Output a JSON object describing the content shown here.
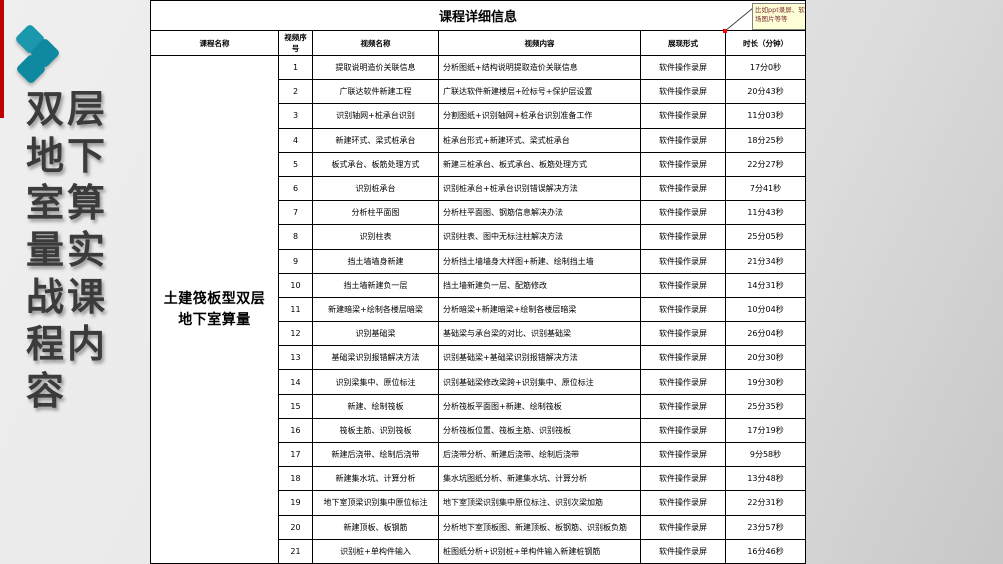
{
  "sidebar": {
    "title": "双层地下室算量实战课程内容"
  },
  "logo": {
    "color": "#1590a7"
  },
  "accent": {
    "red_bar_color": "#c00000"
  },
  "note": {
    "line1": "比如ppt录屏、软件",
    "line2": "场图片等等",
    "bg_color": "#ffffd7",
    "text_color": "#7b3030"
  },
  "table": {
    "title": "课程详细信息",
    "columns": [
      "课程名称",
      "视频序号",
      "视频名称",
      "视频内容",
      "展现形式",
      "时长（分钟）"
    ],
    "course_name": "土建筏板型双层地下室算量",
    "rows": [
      {
        "no": "1",
        "name": "提取说明造价关联信息",
        "content": "分析图纸+结构说明提取造价关联信息",
        "form": "软件操作录屏",
        "duration": "17分0秒"
      },
      {
        "no": "2",
        "name": "广联达软件新建工程",
        "content": "广联达软件新建楼层+砼标号+保护层设置",
        "form": "软件操作录屏",
        "duration": "20分43秒"
      },
      {
        "no": "3",
        "name": "识别轴网+桩承台识别",
        "content": "分割图纸+识别轴网+桩承台识别准备工作",
        "form": "软件操作录屏",
        "duration": "11分03秒"
      },
      {
        "no": "4",
        "name": "新建环式、梁式桩承台",
        "content": "桩承台形式+新建环式、梁式桩承台",
        "form": "软件操作录屏",
        "duration": "18分25秒"
      },
      {
        "no": "5",
        "name": "板式承台、板筋处理方式",
        "content": "新建三桩承台、板式承台、板筋处理方式",
        "form": "软件操作录屏",
        "duration": "22分27秒"
      },
      {
        "no": "6",
        "name": "识别桩承台",
        "content": "识别桩承台+桩承台识别错误解决方法",
        "form": "软件操作录屏",
        "duration": "7分41秒"
      },
      {
        "no": "7",
        "name": "分析柱平面图",
        "content": "分析柱平面图、钢筋信息解决办法",
        "form": "软件操作录屏",
        "duration": "11分43秒"
      },
      {
        "no": "8",
        "name": "识别柱表",
        "content": "识别柱表、图中无标注柱解决方法",
        "form": "软件操作录屏",
        "duration": "25分05秒"
      },
      {
        "no": "9",
        "name": "挡土墙墙身新建",
        "content": "分析挡土墙墙身大样图+新建、绘制挡土墙",
        "form": "软件操作录屏",
        "duration": "21分34秒"
      },
      {
        "no": "10",
        "name": "挡土墙新建负一层",
        "content": "挡土墙新建负一层、配筋修改",
        "form": "软件操作录屏",
        "duration": "14分31秒"
      },
      {
        "no": "11",
        "name": "新建暗梁+绘制各楼层暗梁",
        "content": "分析暗梁+新建暗梁+绘制各楼层暗梁",
        "form": "软件操作录屏",
        "duration": "10分04秒"
      },
      {
        "no": "12",
        "name": "识别基础梁",
        "content": "基础梁与承台梁的对比、识别基础梁",
        "form": "软件操作录屏",
        "duration": "26分04秒"
      },
      {
        "no": "13",
        "name": "基础梁识别报错解决方法",
        "content": "识别基础梁+基础梁识别报错解决方法",
        "form": "软件操作录屏",
        "duration": "20分30秒"
      },
      {
        "no": "14",
        "name": "识别梁集中、原位标注",
        "content": "识别基础梁修改梁跨+识别集中、原位标注",
        "form": "软件操作录屏",
        "duration": "19分30秒"
      },
      {
        "no": "15",
        "name": "新建、绘制筏板",
        "content": "分析筏板平面图+新建、绘制筏板",
        "form": "软件操作录屏",
        "duration": "25分35秒"
      },
      {
        "no": "16",
        "name": "筏板主筋、识别筏板",
        "content": "分析筏板位置、筏板主筋、识别筏板",
        "form": "软件操作录屏",
        "duration": "17分19秒"
      },
      {
        "no": "17",
        "name": "新建后浇带、绘制后浇带",
        "content": "后浇带分析、新建后浇带、绘制后浇带",
        "form": "软件操作录屏",
        "duration": "9分58秒"
      },
      {
        "no": "18",
        "name": "新建集水坑、计算分析",
        "content": "集水坑图纸分析、新建集水坑、计算分析",
        "form": "软件操作录屏",
        "duration": "13分48秒"
      },
      {
        "no": "19",
        "name": "地下室顶梁识别集中原位标注",
        "content": "地下室顶梁识别集中原位标注、识别次梁加筋",
        "form": "软件操作录屏",
        "duration": "22分31秒"
      },
      {
        "no": "20",
        "name": "新建顶板、板钢筋",
        "content": "分析地下室顶板图、新建顶板、板钢筋、识别板负筋",
        "form": "软件操作录屏",
        "duration": "23分57秒"
      },
      {
        "no": "21",
        "name": "识别桩+单构件输入",
        "content": "桩图纸分析+识别桩+单构件输入新建桩钢筋",
        "form": "软件操作录屏",
        "duration": "16分46秒"
      }
    ]
  }
}
